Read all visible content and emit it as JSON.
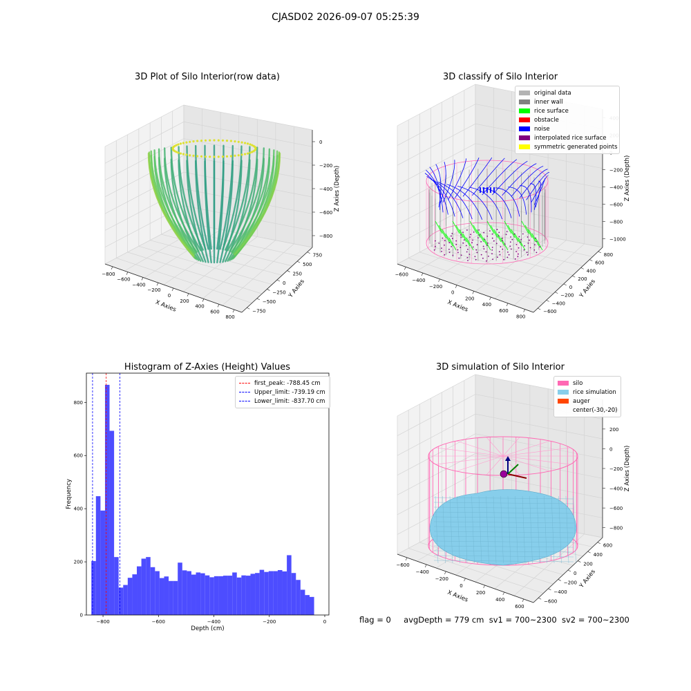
{
  "suptitle": "CJASD02 2026-09-07 05:25:39",
  "bottom_status": {
    "flag": "flag = 0",
    "avg_depth": "avgDepth = 779 cm",
    "sv1": "sv1 = 700~2300",
    "sv2": "sv2 = 700~2300"
  },
  "colors": {
    "original_data": "#b3b3b3",
    "inner_wall": "#808080",
    "rice_surface": "#00ff00",
    "obstacle": "#ff0000",
    "noise": "#0000ff",
    "interpolated_rice_surface": "#800080",
    "symmetric_generated_points": "#ffff00",
    "silo": "#ff69b4",
    "rice_simulation": "#87ceeb",
    "auger": "#ff4500",
    "hist_bar": "#4d4dff"
  },
  "chart_data": [
    {
      "type": "scatter",
      "title": "3D Plot of Silo Interior(row data)",
      "xlabel": "X Axies",
      "ylabel": "Y Axies",
      "zlabel": "Z Axies (Depth)",
      "x_ticks": [
        "−800",
        "−600",
        "−400",
        "−200",
        "0",
        "200",
        "400",
        "600",
        "800"
      ],
      "y_ticks": [
        "−750",
        "−500",
        "−250",
        "0",
        "250",
        "500",
        "750"
      ],
      "z_ticks": [
        "0",
        "−200",
        "−400",
        "−600",
        "−800"
      ],
      "colormap": "viridis"
    },
    {
      "type": "scatter",
      "title": "3D classify of Silo Interior",
      "xlabel": "X Axies",
      "ylabel": "Y Axies",
      "zlabel": "Z Axies (Depth)",
      "x_ticks": [
        "−600",
        "−400",
        "−200",
        "0",
        "200",
        "400",
        "600",
        "800"
      ],
      "y_ticks": [
        "−600",
        "−400",
        "−200",
        "0",
        "200",
        "400",
        "600",
        "800"
      ],
      "z_ticks": [
        "400",
        "200",
        "0",
        "−200",
        "−400",
        "−600",
        "−800",
        "−1000"
      ],
      "legend": [
        "original data",
        "inner wall",
        "rice surface",
        "obstacle",
        "noise",
        "interpolated rice surface",
        "symmetric generated points"
      ],
      "legend_position": "top-right"
    },
    {
      "type": "bar",
      "title": "Histogram of Z-Axies (Height) Values",
      "xlabel": "Depth (cm)",
      "ylabel": "Frequency",
      "xlim": [
        -860,
        15
      ],
      "ylim": [
        0,
        910
      ],
      "bin_start": -842,
      "bin_width": 16.4,
      "values": [
        203,
        447,
        393,
        866,
        693,
        218,
        103,
        113,
        140,
        153,
        183,
        212,
        218,
        180,
        165,
        139,
        145,
        128,
        128,
        197,
        168,
        165,
        152,
        160,
        157,
        149,
        142,
        146,
        146,
        148,
        148,
        160,
        141,
        149,
        148,
        155,
        158,
        170,
        162,
        165,
        165,
        169,
        164,
        225,
        158,
        132,
        95,
        75,
        68
      ],
      "x_ticks": [
        -800,
        -600,
        -400,
        -200,
        0
      ],
      "x_tick_labels": [
        "−800",
        "−600",
        "−400",
        "−200",
        "0"
      ],
      "y_ticks": [
        0,
        200,
        400,
        600,
        800
      ],
      "vlines": [
        {
          "label": "first_peak: -788.45 cm",
          "x": -788.45,
          "color": "#ff0000"
        },
        {
          "label": "Upper_limit: -739.19 cm",
          "x": -739.19,
          "color": "#0000ff"
        },
        {
          "label": "Lower_limit: -837.70 cm",
          "x": -837.7,
          "color": "#0000ff"
        }
      ],
      "legend_position": "top-right"
    },
    {
      "type": "scatter",
      "title": "3D simulation of Silo Interior",
      "xlabel": "X Axies",
      "ylabel": "Y Axies",
      "zlabel": "Z Axies (Depth)",
      "x_ticks": [
        "−600",
        "−400",
        "−200",
        "0",
        "200",
        "400",
        "600"
      ],
      "y_ticks": [
        "−600",
        "−400",
        "−200",
        "0",
        "200",
        "400",
        "600"
      ],
      "z_ticks": [
        "400",
        "200",
        "0",
        "−200",
        "−400",
        "−600",
        "−800"
      ],
      "legend": [
        "silo",
        "rice simulation",
        "auger",
        "center(-30,-20)"
      ],
      "legend_position": "top-right"
    }
  ]
}
